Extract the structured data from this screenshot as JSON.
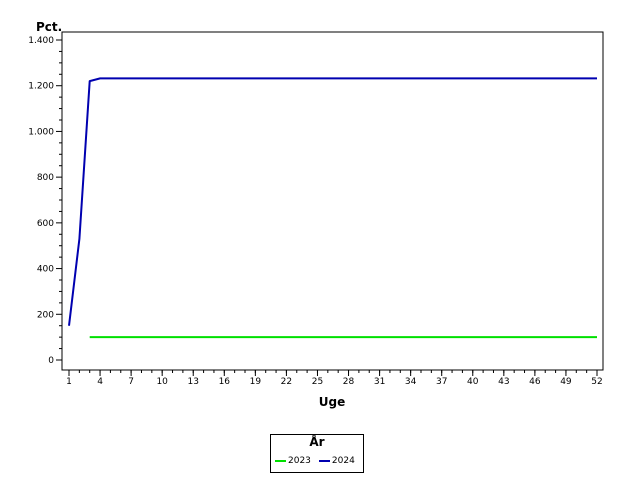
{
  "chart_data": {
    "type": "line",
    "title": "",
    "xlabel": "Uge",
    "ylabel": "Pct.",
    "xlim": [
      1,
      52
    ],
    "ylim": [
      0,
      1400
    ],
    "x_ticks": [
      "1",
      "4",
      "7",
      "10",
      "13",
      "16",
      "19",
      "22",
      "25",
      "28",
      "31",
      "34",
      "37",
      "40",
      "43",
      "46",
      "49",
      "52"
    ],
    "y_ticks": [
      {
        "value": 0,
        "label": "0"
      },
      {
        "value": 200,
        "label": "200"
      },
      {
        "value": 400,
        "label": "400"
      },
      {
        "value": 600,
        "label": "600"
      },
      {
        "value": 800,
        "label": "800"
      },
      {
        "value": 1000,
        "label": "1.000"
      },
      {
        "value": 1200,
        "label": "1.200"
      },
      {
        "value": 1400,
        "label": "1.400"
      }
    ],
    "legend": {
      "title": "År",
      "placement": "bottom-center"
    },
    "series": [
      {
        "name": "2023",
        "color": "#00e000",
        "points": [
          [
            3,
            100
          ],
          [
            52,
            100
          ]
        ]
      },
      {
        "name": "2024",
        "color": "#0000b0",
        "points": [
          [
            1,
            150
          ],
          [
            2,
            530
          ],
          [
            3,
            1220
          ],
          [
            4,
            1232
          ],
          [
            52,
            1232
          ]
        ]
      }
    ]
  }
}
